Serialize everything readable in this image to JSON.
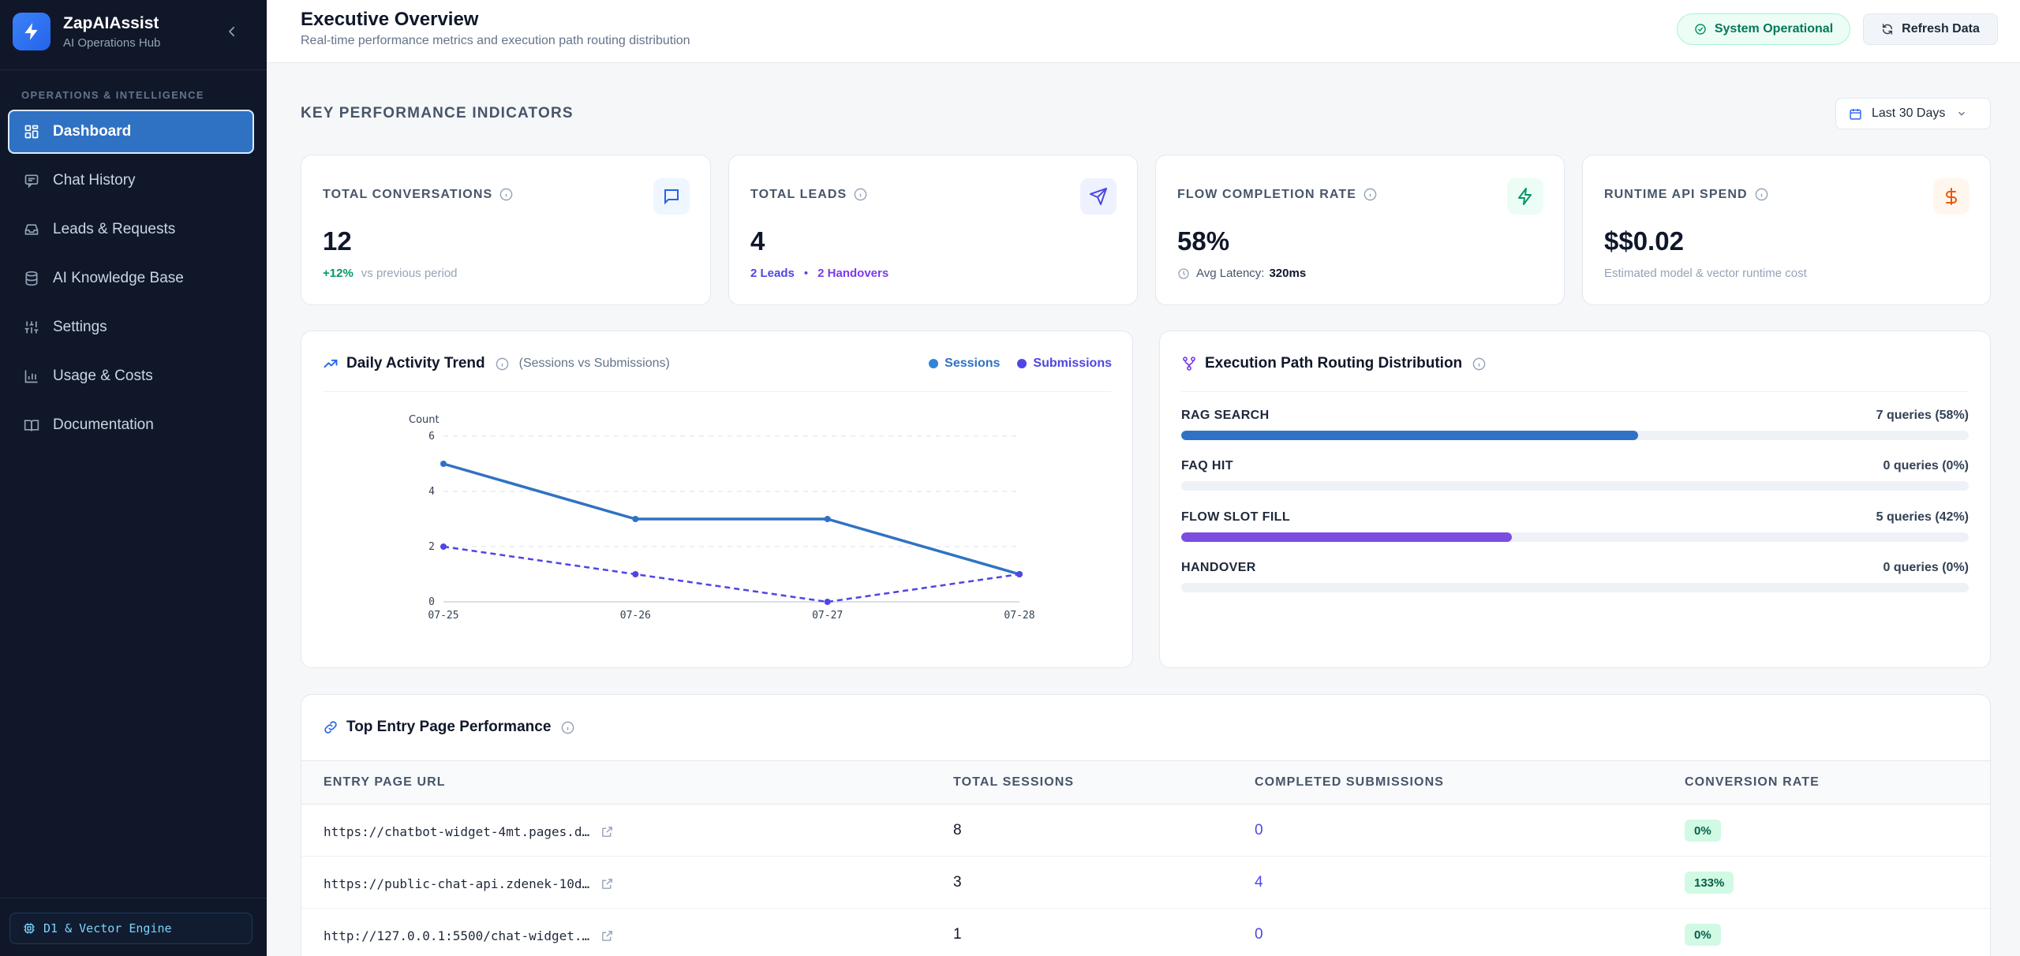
{
  "sidebar": {
    "brand_name": "ZapAIAssist",
    "brand_sub": "AI Operations Hub",
    "section_label": "OPERATIONS & INTELLIGENCE",
    "items": [
      {
        "label": "Dashboard",
        "icon": "dashboard-icon",
        "active": true
      },
      {
        "label": "Chat History",
        "icon": "chat-icon",
        "active": false
      },
      {
        "label": "Leads & Requests",
        "icon": "inbox-icon",
        "active": false
      },
      {
        "label": "AI Knowledge Base",
        "icon": "database-icon",
        "active": false
      },
      {
        "label": "Settings",
        "icon": "sliders-icon",
        "active": false
      },
      {
        "label": "Usage & Costs",
        "icon": "bar-chart-icon",
        "active": false
      },
      {
        "label": "Documentation",
        "icon": "book-icon",
        "active": false
      }
    ],
    "engine_badge": "D1 & Vector Engine"
  },
  "header": {
    "title": "Executive Overview",
    "subtitle": "Real-time performance metrics and execution path routing distribution",
    "status": "System Operational",
    "refresh": "Refresh Data"
  },
  "kpi": {
    "heading": "KEY PERFORMANCE INDICATORS",
    "range": "Last 30 Days",
    "cards": [
      {
        "label": "TOTAL CONVERSATIONS",
        "value": "12",
        "delta": "+12%",
        "delta_note": "vs previous period",
        "icon": "message-icon",
        "accent": "#2563eb"
      },
      {
        "label": "TOTAL LEADS",
        "value": "4",
        "leads": "2 Leads",
        "sep": "•",
        "handovers": "2 Handovers",
        "icon": "send-icon",
        "accent": "#4f46e5"
      },
      {
        "label": "FLOW COMPLETION RATE",
        "value": "58%",
        "latency_label": "Avg Latency:",
        "latency_value": "320ms",
        "icon": "zap-icon",
        "accent": "#059669"
      },
      {
        "label": "RUNTIME API SPEND",
        "value": "$$0.02",
        "note": "Estimated model & vector runtime cost",
        "icon": "dollar-icon",
        "accent": "#ea580c"
      }
    ]
  },
  "trend": {
    "title": "Daily Activity Trend",
    "subtitle": "(Sessions vs Submissions)",
    "legend_sessions": "Sessions",
    "legend_submissions": "Submissions"
  },
  "routing": {
    "title": "Execution Path Routing Distribution",
    "rows": [
      {
        "label": "RAG SEARCH",
        "count": "7 queries (58%)",
        "fraction": 0.58,
        "color": "#2f72c4"
      },
      {
        "label": "FAQ HIT",
        "count": "0 queries (0%)",
        "fraction": 0,
        "color": "#2f72c4"
      },
      {
        "label": "FLOW SLOT FILL",
        "count": "5 queries (42%)",
        "fraction": 0.42,
        "color": "#7c4de0"
      },
      {
        "label": "HANDOVER",
        "count": "0 queries (0%)",
        "fraction": 0,
        "color": "#2f72c4"
      }
    ]
  },
  "entry_pages": {
    "title": "Top Entry Page Performance",
    "columns": [
      "ENTRY PAGE URL",
      "TOTAL SESSIONS",
      "COMPLETED SUBMISSIONS",
      "CONVERSION RATE"
    ],
    "rows": [
      {
        "url": "https://chatbot-widget-4mt.pages.d…",
        "sessions": "8",
        "submissions": "0",
        "rate": "0%"
      },
      {
        "url": "https://public-chat-api.zdenek-10d…",
        "sessions": "3",
        "submissions": "4",
        "rate": "133%"
      },
      {
        "url": "http://127.0.0.1:5500/chat-widget.…",
        "sessions": "1",
        "submissions": "0",
        "rate": "0%"
      }
    ]
  },
  "chart_data": {
    "type": "line",
    "title": "",
    "xlabel": "",
    "ylabel": "Count",
    "x": [
      "07-25",
      "07-26",
      "07-27",
      "07-28"
    ],
    "ylim": [
      0,
      6
    ],
    "yticks": [
      "0",
      "2",
      "4",
      "6"
    ],
    "grid": true,
    "series": [
      {
        "name": "Sessions",
        "values": [
          5,
          3,
          3,
          1
        ],
        "color": "#2f72c4",
        "dashed": false
      },
      {
        "name": "Submissions",
        "values": [
          2,
          1,
          0,
          1
        ],
        "color": "#4f46e5",
        "dashed": true
      }
    ]
  }
}
